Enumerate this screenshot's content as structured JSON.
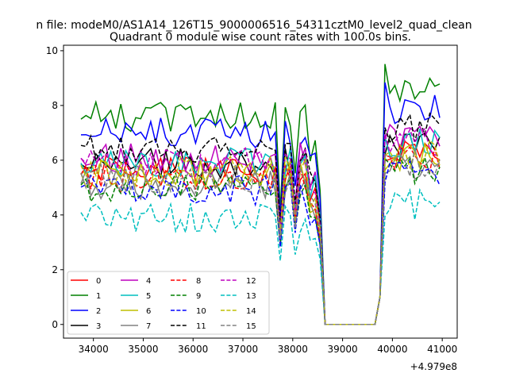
{
  "chart_data": {
    "type": "line",
    "suptitle": "n file: modeM0/AS1A14_126T15_9000006516_54311cztM0_level2_quad_clean",
    "title": "Quadrant 0 module wise count rates with 100.0s bins.",
    "x_offset_label": "+4.979e8",
    "xlabel": "",
    "ylabel": "",
    "xlim": [
      33400,
      41300
    ],
    "ylim": [
      -0.5,
      10.2
    ],
    "x_ticks": [
      34000,
      35000,
      36000,
      37000,
      38000,
      39000,
      40000,
      41000
    ],
    "y_ticks": [
      0,
      2,
      4,
      6,
      8,
      10
    ],
    "legend_position": "lower-left",
    "grid": false,
    "series": [
      {
        "name": "0",
        "color": "#ff0000",
        "dash": "solid",
        "base": 5.6
      },
      {
        "name": "1",
        "color": "#008000",
        "dash": "solid",
        "base": 7.6
      },
      {
        "name": "2",
        "color": "#0000ff",
        "dash": "solid",
        "base": 7.0
      },
      {
        "name": "3",
        "color": "#000000",
        "dash": "solid",
        "base": 5.9
      },
      {
        "name": "4",
        "color": "#bf00bf",
        "dash": "solid",
        "base": 6.1
      },
      {
        "name": "5",
        "color": "#00bfbf",
        "dash": "solid",
        "base": 5.9
      },
      {
        "name": "6",
        "color": "#bfbf00",
        "dash": "solid",
        "base": 5.5
      },
      {
        "name": "7",
        "color": "#808080",
        "dash": "solid",
        "base": 5.1
      },
      {
        "name": "8",
        "color": "#ff0000",
        "dash": "dashed",
        "base": 5.4
      },
      {
        "name": "9",
        "color": "#008000",
        "dash": "dashed",
        "base": 5.0
      },
      {
        "name": "10",
        "color": "#0000ff",
        "dash": "dashed",
        "base": 4.9
      },
      {
        "name": "11",
        "color": "#000000",
        "dash": "dashed",
        "base": 6.4
      },
      {
        "name": "12",
        "color": "#bf00bf",
        "dash": "dashed",
        "base": 5.9
      },
      {
        "name": "13",
        "color": "#00bfbf",
        "dash": "dashed",
        "base": 3.9
      },
      {
        "name": "14",
        "color": "#bfbf00",
        "dash": "dashed",
        "base": 5.6
      },
      {
        "name": "15",
        "color": "#808080",
        "dash": "dashed",
        "base": 5.3
      }
    ]
  }
}
